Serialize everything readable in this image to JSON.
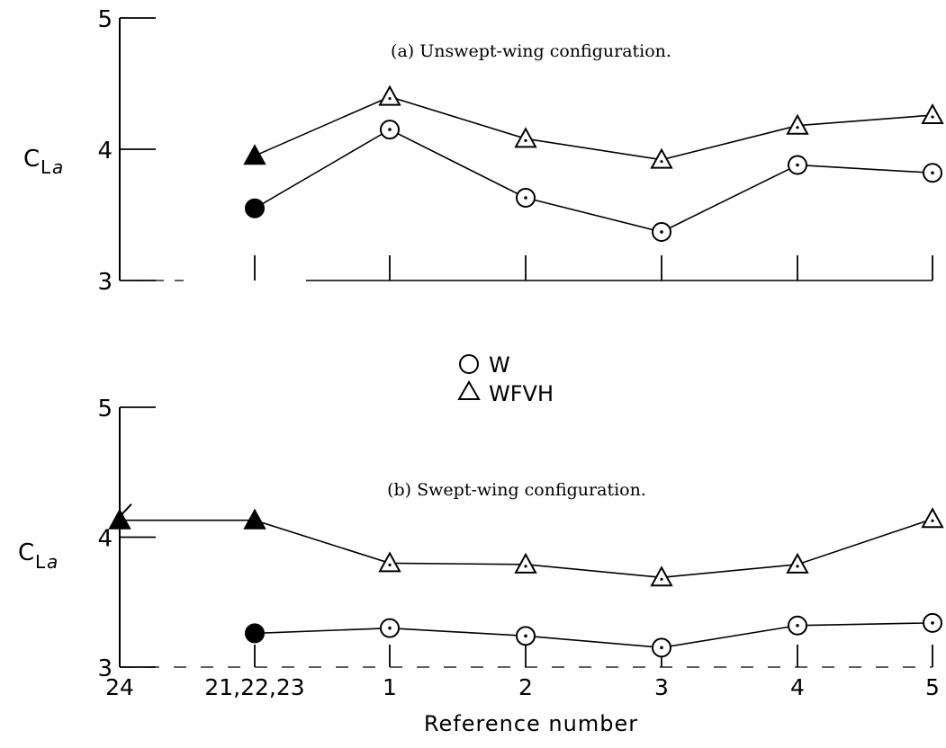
{
  "chart_data": [
    {
      "type": "line",
      "title": "(a) Unswept-wing configuration.",
      "xlabel": "",
      "ylabel": {
        "main": "C",
        "sub1": "L",
        "sub2": "a"
      },
      "ylim": [
        3,
        5
      ],
      "yticks": [
        "3",
        "4",
        "5"
      ],
      "categories": [
        "21,22,23",
        "1",
        "2",
        "3",
        "4",
        "5"
      ],
      "series": [
        {
          "name": "W",
          "marker": "circle",
          "values": [
            3.55,
            4.15,
            3.63,
            3.37,
            3.88,
            3.82
          ],
          "filled": [
            true,
            false,
            false,
            false,
            false,
            false
          ]
        },
        {
          "name": "WFVH",
          "marker": "triangle",
          "values": [
            3.95,
            4.4,
            4.08,
            3.92,
            4.18,
            4.26
          ],
          "filled": [
            true,
            false,
            false,
            false,
            false,
            false
          ]
        }
      ],
      "grid": false
    },
    {
      "type": "line",
      "title": "(b) Swept-wing configuration.",
      "xlabel": "Reference number",
      "ylabel": {
        "main": "C",
        "sub1": "L",
        "sub2": "a"
      },
      "ylim": [
        3,
        5
      ],
      "yticks": [
        "3",
        "4",
        "5"
      ],
      "categories": [
        "24",
        "21,22,23",
        "1",
        "2",
        "3",
        "4",
        "5"
      ],
      "series": [
        {
          "name": "W",
          "marker": "circle",
          "values": [
            null,
            3.26,
            3.3,
            3.24,
            3.15,
            3.32,
            3.34
          ],
          "filled": [
            false,
            true,
            false,
            false,
            false,
            false,
            false
          ]
        },
        {
          "name": "WFVH",
          "marker": "triangle",
          "values": [
            4.13,
            4.13,
            3.8,
            3.79,
            3.69,
            3.79,
            4.14
          ],
          "filled": [
            true,
            true,
            false,
            false,
            false,
            false,
            false
          ]
        }
      ],
      "grid": false
    }
  ],
  "legend": {
    "items": [
      {
        "symbol": "circle",
        "label": "W"
      },
      {
        "symbol": "triangle",
        "label": "WFVH"
      }
    ]
  }
}
